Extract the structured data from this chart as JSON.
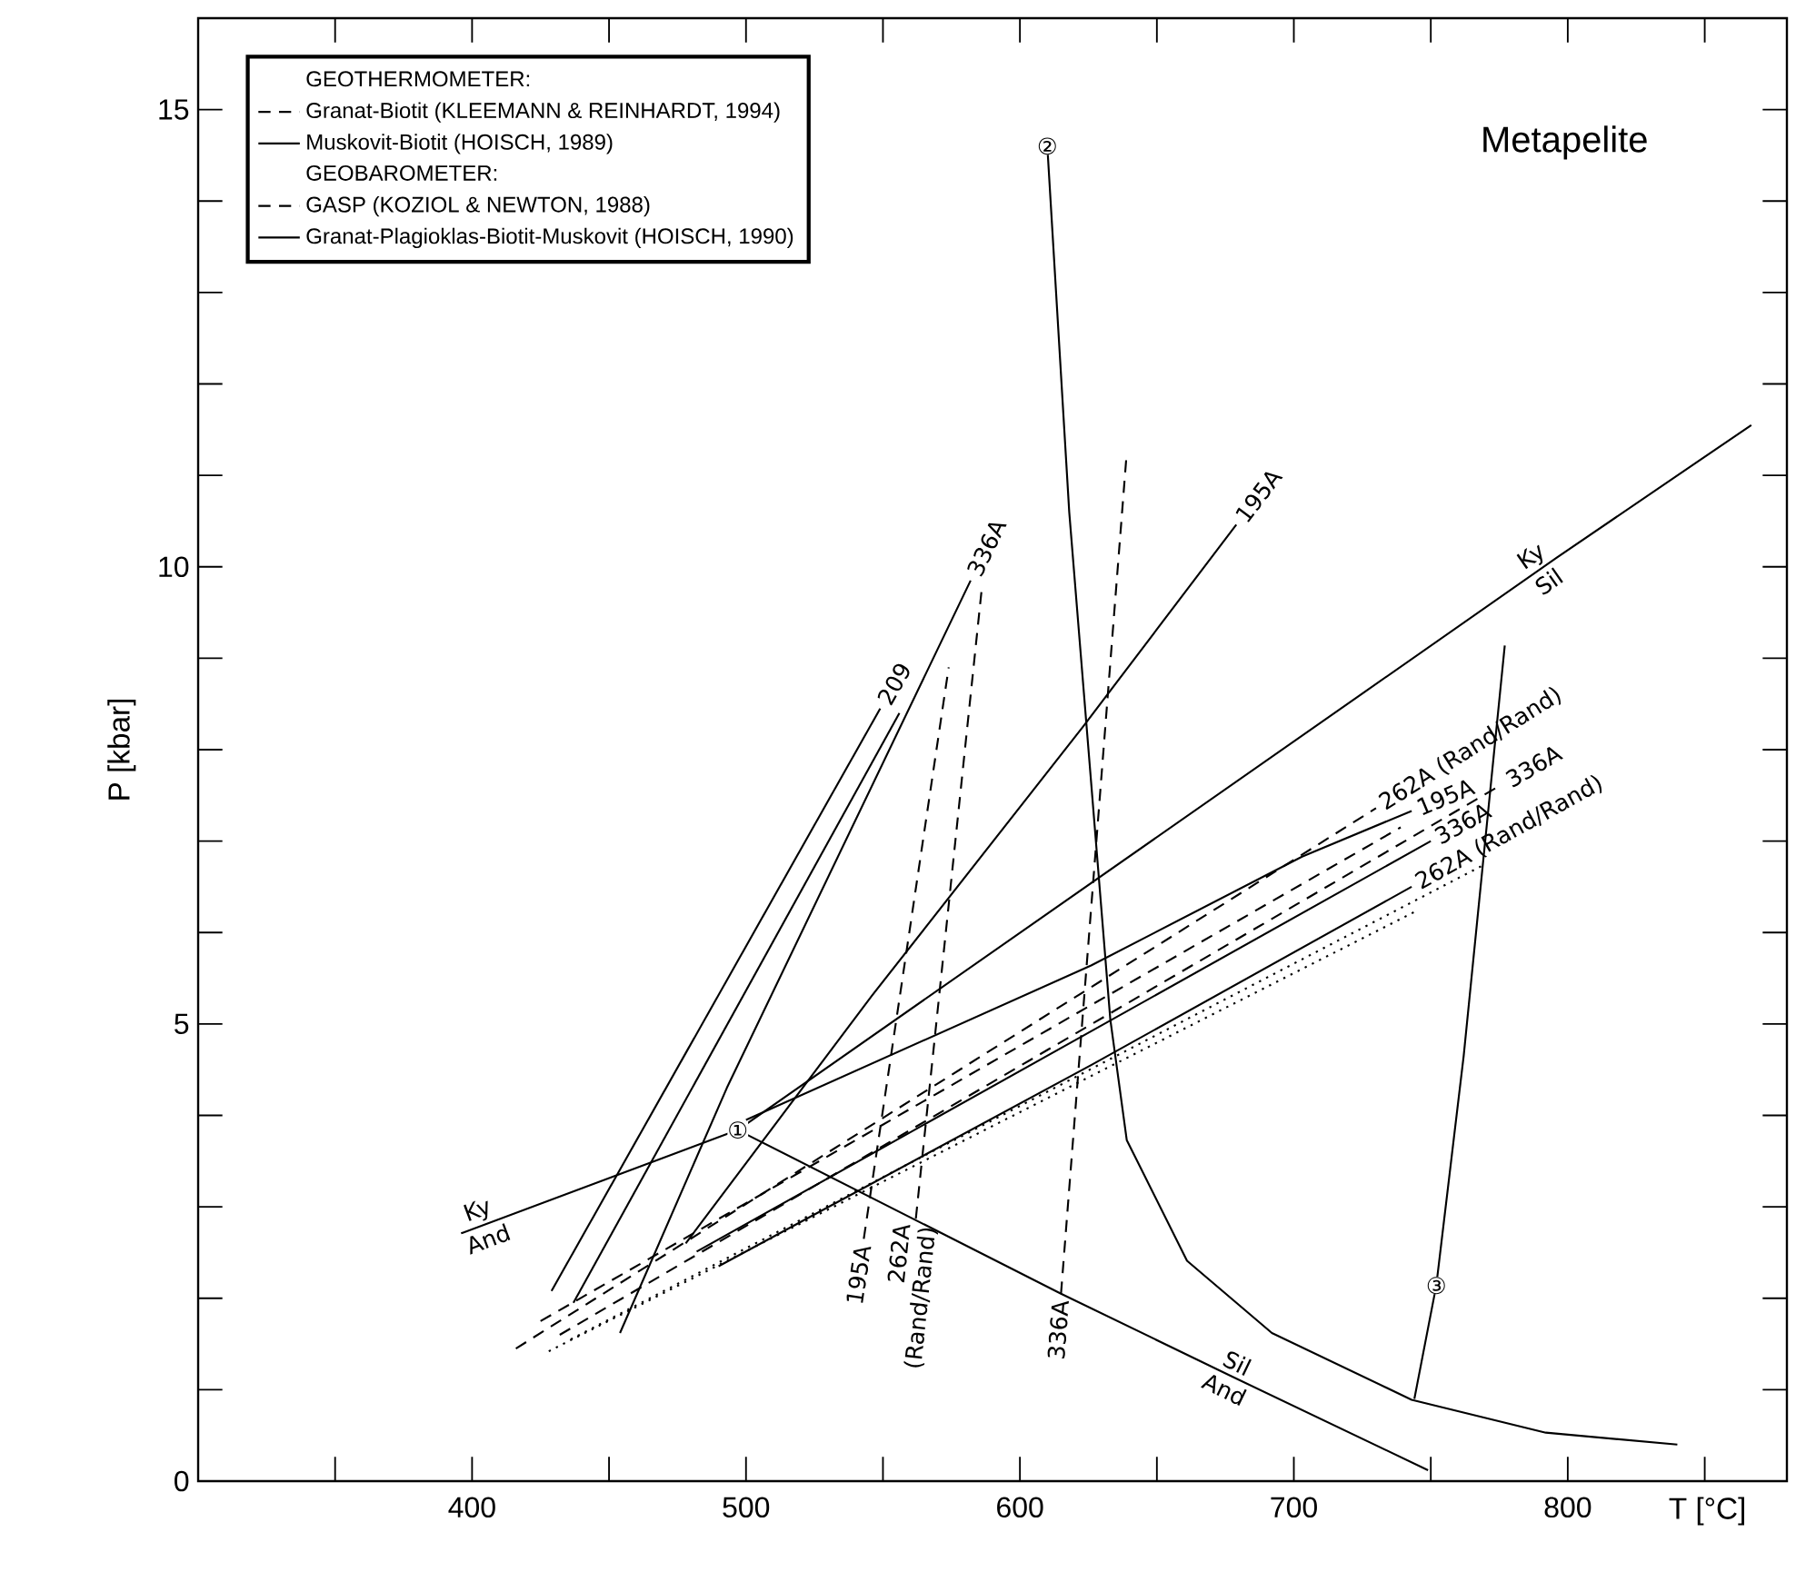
{
  "chart_data": {
    "type": "line",
    "title": "Metapelite",
    "xlabel": "T [°C]",
    "ylabel": "P [kbar]",
    "xlim": [
      300,
      880
    ],
    "ylim": [
      0,
      16
    ],
    "xticks": [
      {
        "value": 350,
        "label": null
      },
      400,
      {
        "value": 450,
        "label": null
      },
      500,
      {
        "value": 550,
        "label": null
      },
      600,
      {
        "value": 650,
        "label": null
      },
      700,
      {
        "value": 750,
        "label": null
      },
      800,
      {
        "value": 850,
        "label": null
      }
    ],
    "yticks": [
      0,
      {
        "value": 1,
        "label": null
      },
      {
        "value": 2,
        "label": null
      },
      {
        "value": 3,
        "label": null
      },
      {
        "value": 4,
        "label": null
      },
      5,
      {
        "value": 6,
        "label": null
      },
      {
        "value": 7,
        "label": null
      },
      {
        "value": 8,
        "label": null
      },
      {
        "value": 9,
        "label": null
      },
      10,
      {
        "value": 11,
        "label": null
      },
      {
        "value": 12,
        "label": null
      },
      {
        "value": 13,
        "label": null
      },
      {
        "value": 14,
        "label": null
      },
      15
    ],
    "legend": "top left",
    "marker": "none",
    "series": [
      {
        "name": "Granat-Biotit (KLEEMANN & REINHARDT, 1994)",
        "color": "#000000",
        "line_style": "dashed",
        "x": [
          543,
          574
        ],
        "values": [
          2.65,
          8.9
        ]
      },
      {
        "color": "#000000",
        "line_style": "dashed",
        "x": [
          562,
          586
        ],
        "values": [
          2.87,
          9.74
        ]
      },
      {
        "color": "#000000",
        "line_style": "dashed",
        "x": [
          615,
          639
        ],
        "values": [
          2.05,
          11.25
        ]
      },
      {
        "name": "Muskovit-Biotit (HOISCH, 1989)",
        "color": "#000000",
        "line_style": "solid",
        "x": [
          429,
          549
        ],
        "values": [
          2.08,
          8.45
        ]
      },
      {
        "color": "#000000",
        "line_style": "solid",
        "x": [
          437,
          556
        ],
        "values": [
          1.95,
          8.4
        ]
      },
      {
        "color": "#000000",
        "line_style": "solid",
        "x": [
          454,
          493,
          582
        ],
        "values": [
          1.62,
          4.3,
          9.85
        ]
      },
      {
        "color": "#000000",
        "line_style": "solid",
        "x": [
          478,
          546,
          623,
          679
        ],
        "values": [
          2.6,
          5.31,
          8.25,
          10.46
        ]
      },
      {
        "name": "GASP (KOZIOL & NEWTON, 1988)",
        "color": "#000000",
        "line_style": "dashed",
        "x": [
          416,
          730
        ],
        "values": [
          1.45,
          7.36
        ]
      },
      {
        "color": "#000000",
        "line_style": "dashed",
        "x": [
          425,
          739
        ],
        "values": [
          1.75,
          7.15
        ]
      },
      {
        "color": "#000000",
        "line_style": "dashed",
        "x": [
          432,
          776
        ],
        "values": [
          1.6,
          7.62
        ]
      },
      {
        "color": "#000000",
        "line_style": "dotted",
        "x": [
          428,
          745
        ],
        "values": [
          1.42,
          6.24
        ]
      },
      {
        "color": "#000000",
        "line_style": "dotted",
        "x": [
          436,
          770
        ],
        "values": [
          1.55,
          6.75
        ]
      },
      {
        "name": "Granat-Plagioklas-Biotit-Muskovit (HOISCH, 1990)",
        "color": "#000000",
        "line_style": "solid",
        "x": [
          500,
          626,
          703,
          743
        ],
        "values": [
          3.95,
          5.64,
          6.83,
          7.33
        ]
      },
      {
        "color": "#000000",
        "line_style": "solid",
        "x": [
          482,
          626,
          750
        ],
        "values": [
          2.51,
          4.92,
          7.0
        ]
      },
      {
        "color": "#000000",
        "line_style": "solid",
        "x": [
          490,
          626,
          743
        ],
        "values": [
          2.35,
          4.55,
          6.5
        ]
      },
      {
        "color": "#000000",
        "line_style": "solid",
        "x": [
          396,
          497,
          796,
          867
        ],
        "values": [
          2.71,
          3.84,
          10.1,
          11.55
        ]
      },
      {
        "color": "#000000",
        "line_style": "solid",
        "x": [
          497,
          615,
          677,
          749
        ],
        "values": [
          3.84,
          2.05,
          1.15,
          0.12
        ]
      },
      {
        "color": "#000000",
        "line_style": "solid",
        "x": [
          610,
          618,
          633,
          639,
          661,
          692,
          743,
          792,
          840
        ],
        "values": [
          14.6,
          10.6,
          5.05,
          3.73,
          2.41,
          1.62,
          0.89,
          0.53,
          0.4
        ]
      },
      {
        "color": "#000000",
        "line_style": "solid",
        "x": [
          744,
          752,
          762,
          777
        ],
        "values": [
          0.9,
          2.14,
          4.65,
          9.14
        ]
      }
    ],
    "annotations": [
      "GEOTHERMOMETER:",
      "GEOBAROMETER:",
      {
        "text": "209",
        "x": 549,
        "y": 8.45
      },
      {
        "text": "336A",
        "x": 582,
        "y": 9.85
      },
      {
        "text": "195A",
        "x": 679,
        "y": 10.46
      },
      {
        "text": "Ky",
        "x": 404,
        "y": 2.8
      },
      {
        "text": "And",
        "x": 404,
        "y": 2.8
      },
      {
        "text": "Sil",
        "x": 677,
        "y": 1.15
      },
      {
        "text": "And",
        "x": 677,
        "y": 1.15
      },
      {
        "text": "Ky",
        "x": 790,
        "y": 9.97
      },
      {
        "text": "Sil",
        "x": 790,
        "y": 9.97
      },
      {
        "text": "①",
        "x": 497,
        "y": 3.84
      },
      {
        "text": "②",
        "x": 610,
        "y": 14.6
      },
      {
        "text": "③",
        "x": 752,
        "y": 2.14
      },
      {
        "text": "195A",
        "x": 543,
        "y": 2.65
      },
      {
        "text": "262A",
        "x": 562,
        "y": 2.87
      },
      {
        "text": "(Rand/Rand)",
        "x": 562,
        "y": 2.87
      },
      {
        "text": "336A",
        "x": 615,
        "y": 2.05
      },
      {
        "text": "262A (Rand/Rand)",
        "x": 730,
        "y": 7.36
      },
      {
        "text": "195A",
        "x": 743,
        "y": 7.33
      },
      {
        "text": "336A",
        "x": 776,
        "y": 7.62
      },
      {
        "text": "336A",
        "x": 750,
        "y": 7.0
      },
      {
        "text": "262A (Rand/Rand)",
        "x": 743,
        "y": 6.5
      }
    ]
  }
}
